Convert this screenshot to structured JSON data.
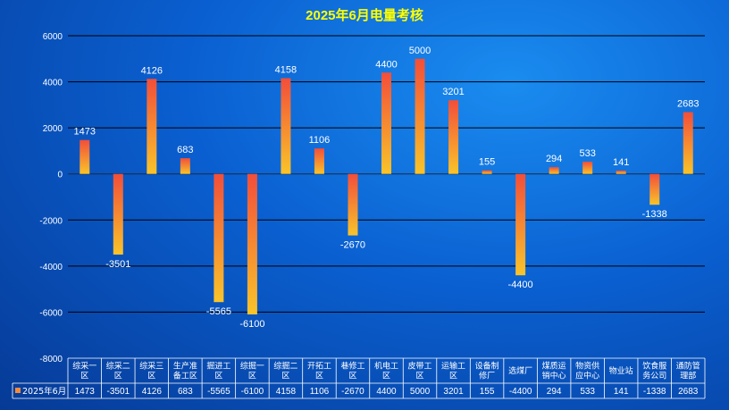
{
  "chart_data": {
    "type": "bar",
    "title": "2025年6月电量考核",
    "categories": [
      [
        "综采一",
        "区"
      ],
      [
        "综采二",
        "区"
      ],
      [
        "综采三",
        "区"
      ],
      [
        "生产准",
        "备工区"
      ],
      [
        "掘进工",
        "区"
      ],
      [
        "综掘一",
        "区"
      ],
      [
        "综掘二",
        "区"
      ],
      [
        "开拓工",
        "区"
      ],
      [
        "巷修工",
        "区"
      ],
      [
        "机电工",
        "区"
      ],
      [
        "皮带工",
        "区"
      ],
      [
        "运输工",
        "区"
      ],
      [
        "设备制",
        "修厂"
      ],
      [
        "选煤厂"
      ],
      [
        "煤质运",
        "销中心"
      ],
      [
        "物资供",
        "应中心"
      ],
      [
        "物业站"
      ],
      [
        "饮食服",
        "务公司"
      ],
      [
        "通防管",
        "理部"
      ]
    ],
    "series": [
      {
        "name": "2025年6月",
        "values": [
          1473,
          -3501,
          4126,
          683,
          -5565,
          -6100,
          4158,
          1106,
          -2670,
          4400,
          5000,
          3201,
          155,
          -4400,
          294,
          533,
          141,
          -1338,
          2683
        ]
      }
    ],
    "yticks": [
      6000,
      4000,
      2000,
      0,
      -2000,
      -4000,
      -6000,
      -8000
    ],
    "ylim": [
      -8000,
      6000
    ],
    "grid": true,
    "data_table": true,
    "colors": {
      "bar_top": "#f24e3a",
      "bar_bottom": "#f9c42a",
      "gridline": "#000000",
      "title": "#ffff00",
      "text": "#ffffff",
      "legend_key": "#f58a3c"
    }
  }
}
